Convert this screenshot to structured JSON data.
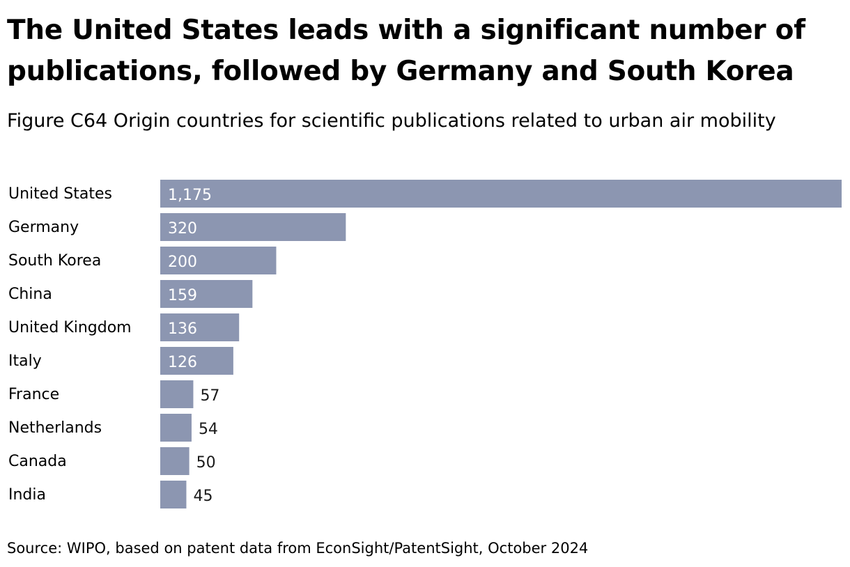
{
  "chart_data": {
    "type": "bar",
    "orientation": "horizontal",
    "title": "The United States leads with a significant number of publications, followed by Germany and South Korea",
    "subtitle": "Figure C64 Origin countries for scientific publications related to urban air mobility",
    "categories": [
      "United States",
      "Germany",
      "South Korea",
      "China",
      "United Kingdom",
      "Italy",
      "France",
      "Netherlands",
      "Canada",
      "India"
    ],
    "values": [
      1175,
      320,
      200,
      159,
      136,
      126,
      57,
      54,
      50,
      45
    ],
    "value_labels": [
      "1,175",
      "320",
      "200",
      "159",
      "136",
      "126",
      "57",
      "54",
      "50",
      "45"
    ],
    "xlim": [
      0,
      1175
    ],
    "grid": false,
    "legend": "none",
    "bar_color": "#8c96b1",
    "label_color_inside": "#ffffff",
    "label_color_outside": "#1a1a1a"
  },
  "source": "Source: WIPO, based on patent data from EconSight/PatentSight, October 2024"
}
